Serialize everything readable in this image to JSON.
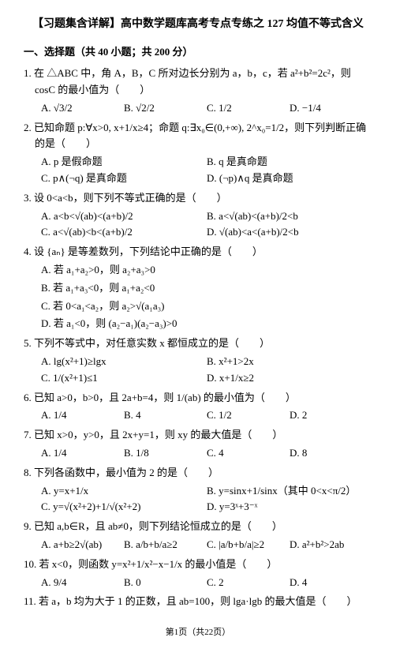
{
  "title": "【习题集含详解】高中数学题库高考专点专练之 127 均值不等式含义",
  "section1": "一、选择题（共 40 小题；共 200 分）",
  "q1": {
    "stem": "1. 在 △ABC 中，角 A，B，C 所对边长分别为 a，b，c，若 a²+b²=2c²，则 cosC 的最小值为（　　）",
    "A": "A. √3/2",
    "B": "B. √2/2",
    "C": "C. 1/2",
    "D": "D. −1/4"
  },
  "q2": {
    "stem": "2. 已知命题 p:∀x>0, x+1/x≥4；命题 q:∃x₀∈(0,+∞), 2^x₀=1/2，则下列判断正确的是（　　）",
    "A": "A. p 是假命题",
    "B": "B. q 是真命题",
    "C": "C. p∧(¬q) 是真命题",
    "D": "D. (¬p)∧q 是真命题"
  },
  "q3": {
    "stem": "3. 设 0<a<b，则下列不等式正确的是（　　）",
    "A": "A. a<b<√(ab)<(a+b)/2",
    "B": "B. a<√(ab)<(a+b)/2<b",
    "C": "C. a<√(ab)<b<(a+b)/2",
    "D": "D. √(ab)<a<(a+b)/2<b"
  },
  "q4": {
    "stem": "4. 设 {aₙ} 是等差数列，下列结论中正确的是（　　）",
    "sA": "A. 若 a₁+a₂>0，则 a₂+a₃>0",
    "sB": "B. 若 a₁+a₃<0，则 a₁+a₂<0",
    "sC": "C. 若 0<a₁<a₂，则 a₂>√(a₁a₃)",
    "sD": "D. 若 a₁<0，则 (a₂−a₁)(a₂−a₃)>0"
  },
  "q5": {
    "stem": "5. 下列不等式中，对任意实数 x 都恒成立的是（　　）",
    "A": "A. lg(x²+1)≥lgx",
    "B": "B. x²+1>2x",
    "C": "C. 1/(x²+1)≤1",
    "D": "D. x+1/x≥2"
  },
  "q6": {
    "stem": "6. 已知 a>0，b>0，且 2a+b=4，则 1/(ab) 的最小值为（　　）",
    "A": "A. 1/4",
    "B": "B. 4",
    "C": "C. 1/2",
    "D": "D. 2"
  },
  "q7": {
    "stem": "7. 已知 x>0，y>0，且 2x+y=1，则 xy 的最大值是（　　）",
    "A": "A. 1/4",
    "B": "B. 1/8",
    "C": "C. 4",
    "D": "D. 8"
  },
  "q8": {
    "stem": "8. 下列各函数中，最小值为 2 的是（　　）",
    "A": "A. y=x+1/x",
    "B": "B. y=sinx+1/sinx（其中 0<x<π/2）",
    "C": "C. y=√(x²+2)+1/√(x²+2)",
    "D": "D. y=3ˣ+3⁻ˣ"
  },
  "q9": {
    "stem": "9. 已知 a,b∈R，且 ab≠0，则下列结论恒成立的是（　　）",
    "A": "A. a+b≥2√(ab)",
    "B": "B. a/b+b/a≥2",
    "C": "C. |a/b+b/a|≥2",
    "D": "D. a²+b²>2ab"
  },
  "q10": {
    "stem": "10. 若 x<0，则函数 y=x²+1/x²−x−1/x 的最小值是（　　）",
    "A": "A. 9/4",
    "B": "B. 0",
    "C": "C. 2",
    "D": "D. 4"
  },
  "q11": {
    "stem": "11. 若 a，b 均为大于 1 的正数，且 ab=100，则 lga·lgb 的最大值是（　　）"
  },
  "footer": "第1页（共22页）"
}
